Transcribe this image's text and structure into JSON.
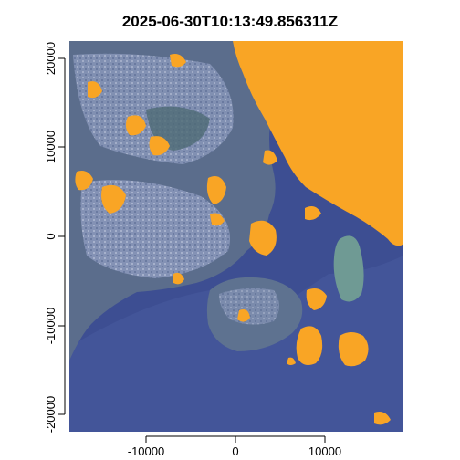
{
  "title": "2025-06-30T10:13:49.856311Z",
  "colors": {
    "sea": "#3d4e92",
    "sea_light": "#4a5fa3",
    "land": "#5b6d8c",
    "urban": "#8e9bbf",
    "urban_bright": "#b9c2dc",
    "vegetation": "#4e6a74",
    "cloud": "#f9a525",
    "island": "#6f9a94",
    "axis": "#000000"
  },
  "chart_data": {
    "type": "raster",
    "title": "2025-06-30T10:13:49.856311Z",
    "xlabel": "",
    "ylabel": "",
    "xlim": [
      -18500,
      18500
    ],
    "ylim": [
      -22000,
      22000
    ],
    "x_ticks": [
      -10000,
      0,
      10000
    ],
    "x_tick_labels": [
      "-10000",
      "0",
      "10000"
    ],
    "y_ticks": [
      -20000,
      -10000,
      0,
      10000,
      20000
    ],
    "y_tick_labels": [
      "-20000",
      "-10000",
      "0",
      "10000",
      "20000"
    ],
    "grid": false,
    "legend": "none"
  }
}
